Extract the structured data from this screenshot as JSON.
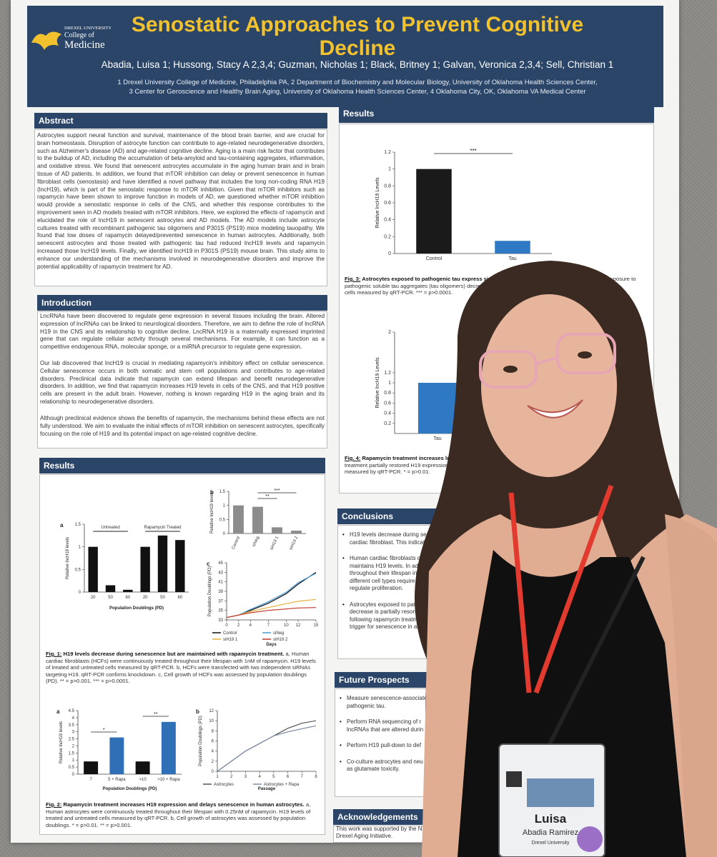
{
  "header": {
    "logo": [
      "DREXEL UNIVERSITY",
      "College of",
      "Medicine"
    ],
    "title": "Senostatic Approaches to Prevent Cognitive Decline",
    "authors": "Abadia, Luisa 1; Hussong, Stacy A 2,3,4; Guzman, Nicholas 1; Black, Britney 1; Galvan, Veronica 2,3,4; Sell, Christian 1",
    "affiliations": [
      "1 Drexel University College of Medicine, Philadelphia PA, 2 Department of Biochemistry and Molecular Biology, University of Oklahoma Health Sciences Center,",
      "3 Center for Geroscience and Healthy Brain Aging, University of Oklahoma Health Sciences Center, 4 Oklahoma City, OK, Oklahoma VA Medical Center"
    ]
  },
  "abstract": {
    "heading": "Abstract",
    "text": "Astrocytes support neural function and survival, maintenance of the blood brain barrier, and are crucial for brain homeostasis. Disruption of astrocyte function can contribute to age-related neurodegenerative disorders, such as Alzheimer's disease (AD) and age-related cognitive decline. Aging is a main risk factor that contributes to the buildup of AD, including the accumulation of beta-amyloid and tau-containing aggregates, inflammation, and oxidative stress. We found that senescent astrocytes accumulate in the aging human brain and in brain tissue of AD patients. In addition, we found that mTOR inhibition can delay or prevent senescence in human fibroblast cells (senostasis) and have identified a novel pathway that includes the long non-coding RNA H19 (lncH19), which is part of the senostatic response to mTOR inhibition. Given that mTOR inhibitors such as rapamycin have been shown to improve function in models of AD, we questioned whether mTOR inhibition would provide a senostatic response in cells of the CNS, and whether this response contributes to the improvement seen in AD models treated with mTOR inhibitors. Here, we explored the effects of rapamycin and elucidated the role of lncH19 in senescent astrocytes and AD models. The AD models include astrocyte cultures treated with recombinant pathogenic tau oligomers and P301S (PS19) mice modeling tauopathy. We found that low doses of rapamycin delayed/prevented senescence in human astrocytes. Additionally, both senescent astrocytes and those treated with pathogenic tau had reduced lncH19 levels and rapamycin increased those lncH19 levels. Finally, we identified lncH19 in P301S (PS19) mouse brain. This study aims to enhance our understanding of the mechanisms involved in neurodegenerative disorders and improve the potential applicability of rapamycin treatment for AD."
  },
  "introduction": {
    "heading": "Introduction",
    "paragraphs": [
      "LncRNAs have been discovered to regulate gene expression in several tissues including the brain. Altered expression of lncRNAs can be linked to neurological disorders. Therefore, we aim to define the role of lncRNA H19 in the CNS and its relationship to cognitive decline. LncRNA H19 is a maternally expressed imprinted gene that can regulate cellular activity through several mechanisms. For example, it can function as a competitive endogenous RNA, molecular sponge, or a miRNA precursor to regulate gene expression.",
      "Our lab discovered that lncH19 is crucial in mediating rapamycin's inhibitory effect on cellular senescence. Cellular senescence occurs in both somatic and stem cell populations and contributes to age-related disorders. Preclinical data indicate that rapamycin can extend lifespan and benefit neurodegenerative disorders. In addition, we find that rapamycin increases H19 levels in cells of the CNS, and that H19 positive cells are present in the adult brain. However, nothing is known regarding H19 in the aging brain and its relationship to neurodegenerative disorders.",
      "Although preclinical evidence shows the benefits of rapamycin, the mechanisms behind these effects are not fully understood. We aim to evaluate the initial effects of mTOR inhibition on senescent astrocytes, specifically focusing on the role of H19 and its potential impact on age-related cognitive decline."
    ]
  },
  "results_left": {
    "heading": "Results",
    "fig1": {
      "label": "Fig. 1:",
      "title": "H19 levels decrease during senescence but are maintained with rapamycin treatment.",
      "text": "a, Human cardiac fibroblasts (HCFs) were continuously treated throughout their lifespan with 1nM of rapamycin. H19 levels of treated and untreated cells measured by qRT-PCR. b, HCFs were transfected with two independent siRNAs targeting H19. qRT-PCR confirms knockdown. c, Cell growth of HCFs was assessed by population doublings (PD). ** = p>0.001. *** = p>0.0001."
    },
    "fig2": {
      "label": "Fig. 2:",
      "title": "Rapamycin treatment increases H19 expression and delays senescence in human astrocytes.",
      "text": "a, Human astrocytes were continuously treated throughout their lifespan with 0.25nM of rapamycin. H19 levels of treated and untreated cells measured by qRT-PCR. b, Cell growth of astrocytes was assessed by population doublings. * = p>0.01. ** = p>0.001."
    }
  },
  "figures": {
    "fig1a": {
      "type": "bar",
      "panel": "a",
      "categories": [
        "20",
        "50",
        "60",
        "20",
        "50",
        "60"
      ],
      "values": [
        1.0,
        0.15,
        0.05,
        1.0,
        1.25,
        1.15
      ],
      "color": "#111111",
      "ylim": [
        0,
        1.5
      ],
      "yticks": [
        0,
        0.5,
        1,
        1.5
      ],
      "ylabel": "Relative lncH19 levels",
      "xlabel": "Population Doublings (PD)",
      "groups": [
        "Untreated",
        "Rapamycin Treated"
      ]
    },
    "fig1b": {
      "type": "bar",
      "panel": "b",
      "categories": [
        "Control",
        "siNeg",
        "siH19 1",
        "siH19 2"
      ],
      "values": [
        1.0,
        0.95,
        0.22,
        0.1
      ],
      "color": "#8c8c8c",
      "ylim": [
        0,
        1.5
      ],
      "yticks": [
        0,
        0.5,
        1,
        1.5
      ],
      "ylabel": "Relative lncH19 levels",
      "sig": [
        "**",
        "***"
      ]
    },
    "fig1c": {
      "type": "line",
      "panel": "c",
      "x": [
        0,
        2,
        4,
        7,
        10,
        12,
        15
      ],
      "xlim": [
        0,
        15
      ],
      "xticks": [
        0,
        2,
        4,
        7,
        10,
        12,
        15
      ],
      "ylim": [
        33,
        45
      ],
      "yticks": [
        33,
        35,
        37,
        39,
        41,
        43,
        45
      ],
      "ylabel": "Population Doublings (PD)",
      "xlabel": "Days",
      "series": [
        {
          "name": "Control",
          "color": "#111111",
          "values": [
            33.5,
            34,
            35,
            36.5,
            38.5,
            40.5,
            43
          ]
        },
        {
          "name": "siNeg",
          "color": "#4a9bd1",
          "values": [
            33.5,
            34,
            35.2,
            36.8,
            38.8,
            40.8,
            42.8
          ]
        },
        {
          "name": "siH19 1",
          "color": "#e8b040",
          "values": [
            33.5,
            34,
            34.8,
            35.6,
            36.4,
            36.9,
            37.3
          ]
        },
        {
          "name": "siH19 2",
          "color": "#c0392b",
          "values": [
            33.5,
            34,
            34.5,
            35,
            35.3,
            35.5,
            35.6
          ]
        }
      ]
    },
    "fig2a": {
      "type": "bar",
      "panel": "a",
      "categories": [
        "7",
        "5 + Rapa",
        ">10",
        ">10 + Rapa"
      ],
      "values": [
        0.9,
        2.6,
        0.9,
        3.7
      ],
      "colors": [
        "#111111",
        "#2f6fb5",
        "#111111",
        "#2f6fb5"
      ],
      "ylim": [
        0,
        4.5
      ],
      "yticks": [
        0,
        0.5,
        1,
        1.5,
        2,
        2.5,
        3,
        3.5,
        4,
        4.5
      ],
      "ylabel": "Relative lncH19 levels",
      "xlabel": "Population Doublings (PD)",
      "sig": [
        "*",
        "**"
      ]
    },
    "fig2b": {
      "type": "line",
      "panel": "b",
      "x": [
        1,
        2,
        3,
        4,
        5,
        6,
        7,
        8
      ],
      "xlim": [
        1,
        8
      ],
      "xticks": [
        1,
        2,
        3,
        4,
        5,
        6,
        7,
        8
      ],
      "ylim": [
        0,
        12
      ],
      "yticks": [
        0,
        2,
        4,
        6,
        8,
        10,
        12
      ],
      "ylabel": "Population Doublings (PD)",
      "xlabel": "Passage",
      "series": [
        {
          "name": "Astrocytes",
          "color": "#555555",
          "values": [
            0,
            2,
            4,
            5.5,
            7,
            8.5,
            9.5,
            10
          ]
        },
        {
          "name": "Astrocytes + Rapa",
          "color": "#7f8fa6",
          "values": [
            0,
            2,
            4,
            5.5,
            7,
            7.8,
            8.4,
            9
          ]
        }
      ]
    },
    "fig3": {
      "type": "bar",
      "categories": [
        "Control",
        "Tau"
      ],
      "values": [
        1.0,
        0.15
      ],
      "colors": [
        "#1a1a1a",
        "#2f78c4"
      ],
      "ylim": [
        0,
        1.2
      ],
      "yticks": [
        0,
        0.2,
        0.4,
        0.6,
        0.8,
        1,
        1.2
      ],
      "ylabel": "Relative lncH19 Levels",
      "sig": [
        "***"
      ]
    },
    "fig4": {
      "type": "bar",
      "categories": [
        "Tau"
      ],
      "values": [
        1.0
      ],
      "colors": [
        "#2f78c4"
      ],
      "ylim": [
        0,
        2
      ],
      "yticks": [
        0.2,
        0.4,
        0.6,
        0.8,
        1,
        1.2,
        2
      ],
      "ylabel": "Relative lncH19 Levels"
    }
  },
  "results_right": {
    "heading": "Results",
    "fig3": {
      "label": "Fig. 3:",
      "title": "Astrocytes exposed to pathogenic tau express signif",
      "tail": "xposure to",
      "lines": [
        "pathogenic soluble tau aggregates (tau oligomers) decreased H19",
        "cells measured by qRT-PCR. *** = p>0.0001."
      ]
    },
    "fig4": {
      "label": "Fig. 4:",
      "title": "Rapamycin treatment increases ln",
      "lines": [
        "treatment partially restored H19 expression (lev",
        "measured by qRT-PCR. * = p>0.01."
      ]
    }
  },
  "conclusions": {
    "heading": "Conclusions",
    "bullets": [
      [
        "H19 levels decrease during senesc",
        "cardiac fibroblast. This indicates"
      ],
      [
        "Human cardiac fibroblasts cont",
        "maintains H19 levels. In additio",
        "throughout their lifespan increa",
        "different cell types require vary",
        "regulate proliferation."
      ],
      [
        "Astrocytes exposed to patho",
        "decrease is partially resorted",
        "following rapamycin treatm",
        "trigger for senescence in as"
      ]
    ]
  },
  "future": {
    "heading": "Future Prospects",
    "bullets": [
      [
        "Measure senescence-associate",
        "pathogenic tau."
      ],
      [
        "Perform RNA sequencing of r",
        "lncRNAs that are altered durin"
      ],
      [
        "Perform H19 pull-down to def"
      ],
      [
        "Co-culture astrocytes and neu",
        "as glutamate toxicity."
      ]
    ]
  },
  "acknowledgements": {
    "heading": "Acknowledgements",
    "lines": [
      "This work was supported by the N",
      "Drexel Aging Initiative."
    ]
  },
  "badge": {
    "name": "Luisa",
    "surname": "Abadia Ramirez",
    "school": "Drexel University"
  }
}
